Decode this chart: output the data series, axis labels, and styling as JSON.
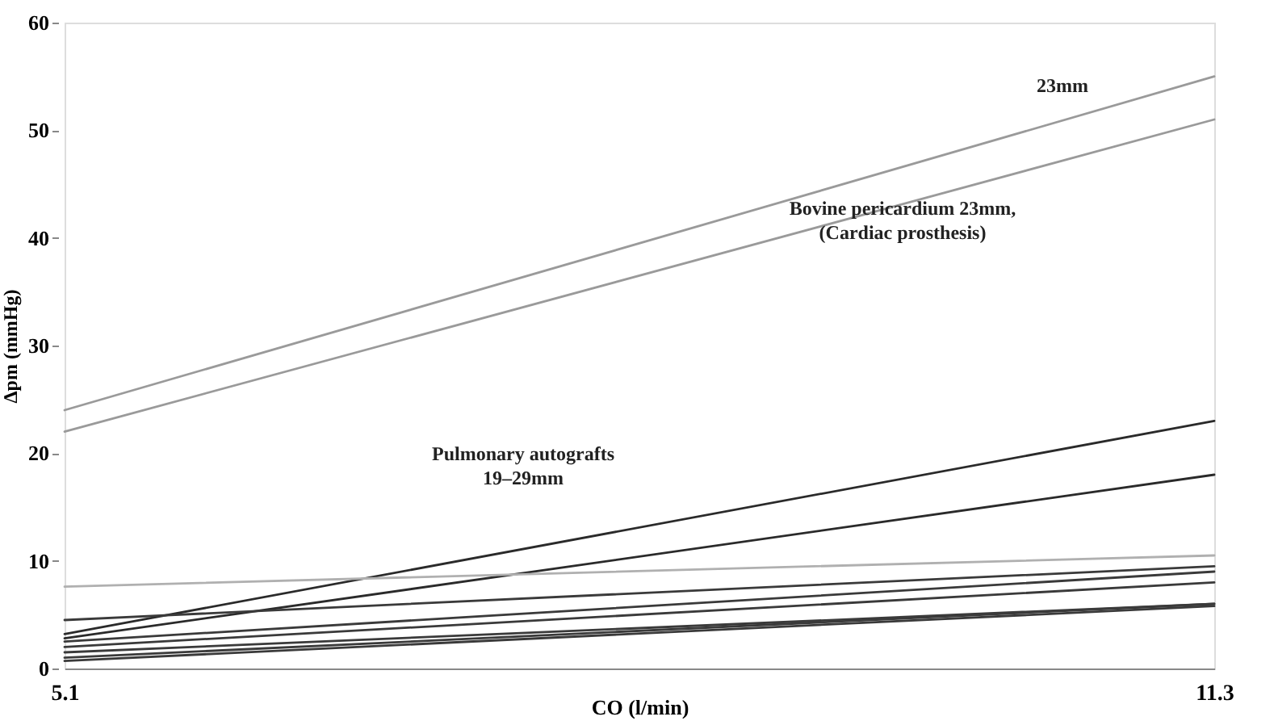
{
  "chart_data": {
    "type": "line",
    "xlabel": "CO (l/min)",
    "ylabel": "Δpm (mmHg)",
    "x": [
      5.1,
      11.3
    ],
    "xlim": [
      5.1,
      11.3
    ],
    "xticks": [
      5.1,
      11.3
    ],
    "ylim": [
      0,
      60
    ],
    "yticks": [
      0,
      10,
      20,
      30,
      40,
      50,
      60
    ],
    "grid": false,
    "legend": false,
    "marker": "none",
    "line_style": "solid",
    "series": [
      {
        "color": "#9a9a9a",
        "values": [
          24,
          55
        ]
      },
      {
        "color": "#9a9a9a",
        "values": [
          22,
          51
        ]
      },
      {
        "color": "#2a2a2a",
        "values": [
          3.2,
          23
        ]
      },
      {
        "color": "#2a2a2a",
        "values": [
          2.8,
          18
        ]
      },
      {
        "color": "#b0b0b0",
        "values": [
          7.6,
          10.5
        ]
      },
      {
        "color": "#3a3a3a",
        "values": [
          4.5,
          9.5
        ]
      },
      {
        "color": "#3a3a3a",
        "values": [
          2.5,
          9
        ]
      },
      {
        "color": "#3a3a3a",
        "values": [
          2,
          8
        ]
      },
      {
        "color": "#3a3a3a",
        "values": [
          1.5,
          6
        ]
      },
      {
        "color": "#3a3a3a",
        "values": [
          1,
          6
        ]
      },
      {
        "color": "#3a3a3a",
        "values": [
          0.7,
          5.8
        ]
      }
    ],
    "annotations": [
      "23mm",
      "Bovine pericardium 23mm,\n(Cardiac prosthesis)",
      "Pulmonary autografts\n19–29mm"
    ]
  }
}
